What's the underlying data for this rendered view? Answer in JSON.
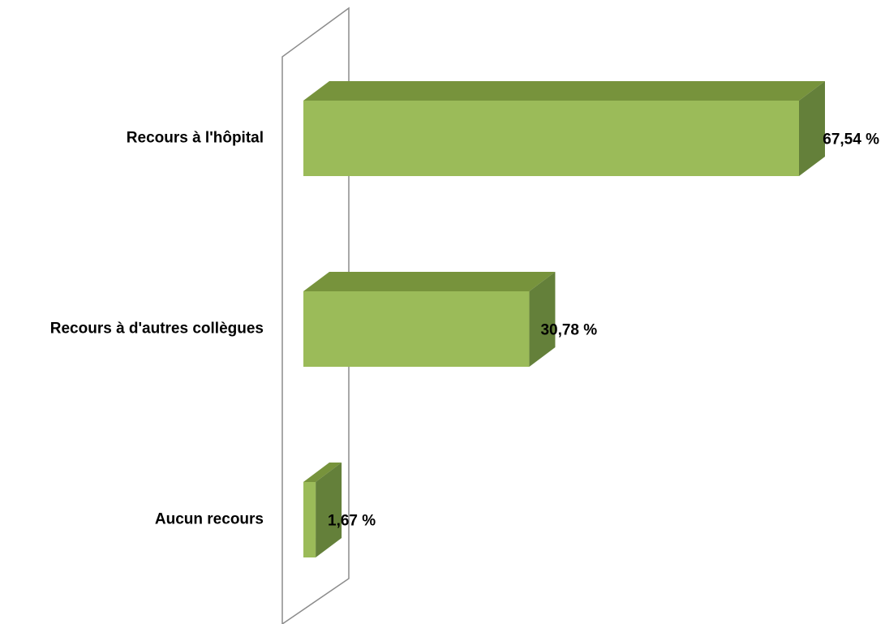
{
  "chart_data": {
    "type": "bar",
    "orientation": "horizontal",
    "style": "3d",
    "categories": [
      "Recours à l'hôpital",
      "Recours à d'autres collègues",
      "Aucun recours"
    ],
    "values": [
      67.54,
      30.78,
      1.67
    ],
    "value_labels": [
      "67,54 %",
      "30,78 %",
      "1,67 %"
    ],
    "xlim": [
      0,
      67.54
    ],
    "grid": false,
    "legend": "none",
    "colors": {
      "front": "#9bbb59",
      "top": "#77933c",
      "side": "#64803a",
      "wall": "#8c8c8c"
    }
  }
}
